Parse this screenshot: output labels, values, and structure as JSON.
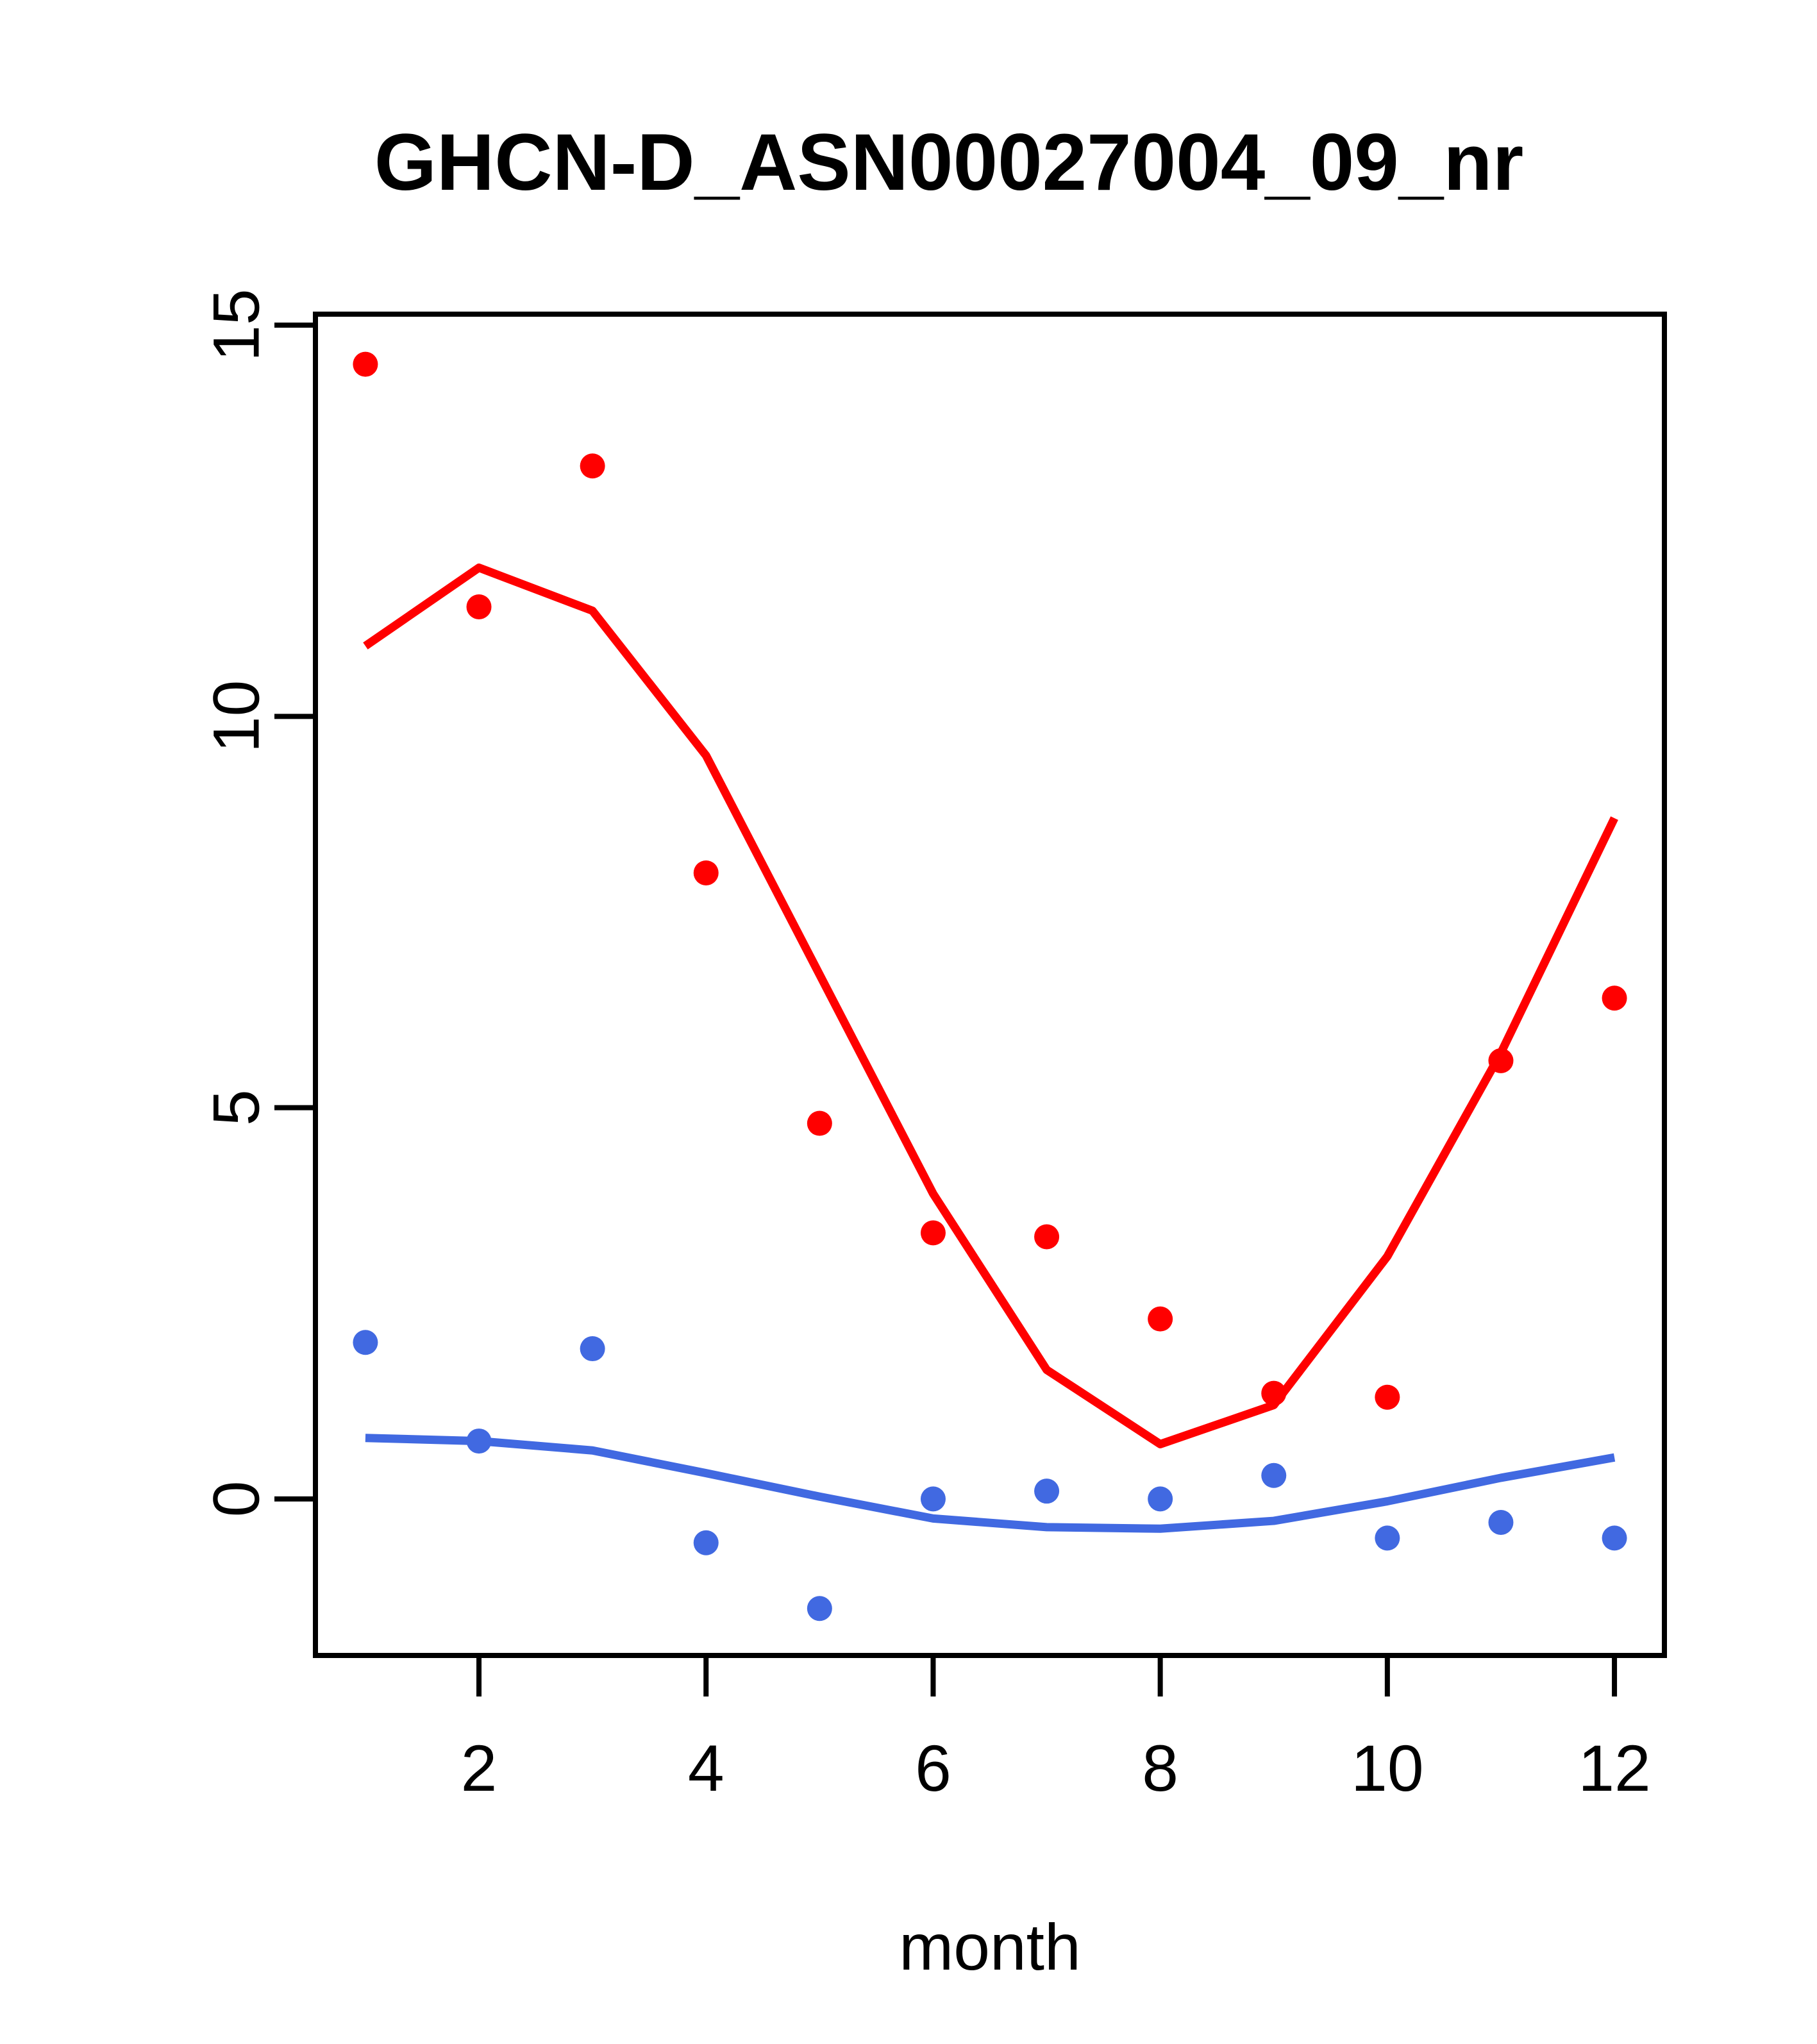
{
  "chart_data": {
    "type": "scatter",
    "title": "GHCN-D_ASN00027004_09_nr",
    "xlabel": "month",
    "ylabel": "",
    "x": [
      1,
      2,
      3,
      4,
      5,
      6,
      7,
      8,
      9,
      10,
      11,
      12
    ],
    "series": [
      {
        "name": "red-scatter",
        "kind": "points",
        "color": "#FF0000",
        "values": [
          14.5,
          11.4,
          13.2,
          8.0,
          4.8,
          3.4,
          3.35,
          2.3,
          1.35,
          1.3,
          5.6,
          6.4
        ]
      },
      {
        "name": "blue-scatter",
        "kind": "points",
        "color": "#4169E1",
        "values": [
          2.0,
          0.74,
          1.92,
          -0.56,
          -1.4,
          0.0,
          0.1,
          0.0,
          0.3,
          -0.5,
          -0.3,
          -0.5
        ]
      },
      {
        "name": "red-smooth-line",
        "kind": "line",
        "color": "#FF0000",
        "values": [
          10.9,
          11.9,
          11.35,
          9.5,
          6.7,
          3.9,
          1.65,
          0.7,
          1.2,
          3.1,
          5.7,
          8.7
        ]
      },
      {
        "name": "blue-smooth-line",
        "kind": "line",
        "color": "#4169E1",
        "values": [
          0.78,
          0.74,
          0.62,
          0.33,
          0.03,
          -0.25,
          -0.36,
          -0.38,
          -0.28,
          -0.03,
          0.27,
          0.53
        ]
      }
    ],
    "x_ticks": [
      2,
      4,
      6,
      8,
      10,
      12
    ],
    "y_ticks": [
      0,
      5,
      10,
      15
    ],
    "xlim": [
      0.56,
      12.44
    ],
    "ylim": [
      -2.0,
      15.14
    ],
    "grid": false,
    "legend_position": null,
    "colors": {
      "red": "#FF0000",
      "blue": "#4169E1",
      "axis": "#000000"
    }
  }
}
